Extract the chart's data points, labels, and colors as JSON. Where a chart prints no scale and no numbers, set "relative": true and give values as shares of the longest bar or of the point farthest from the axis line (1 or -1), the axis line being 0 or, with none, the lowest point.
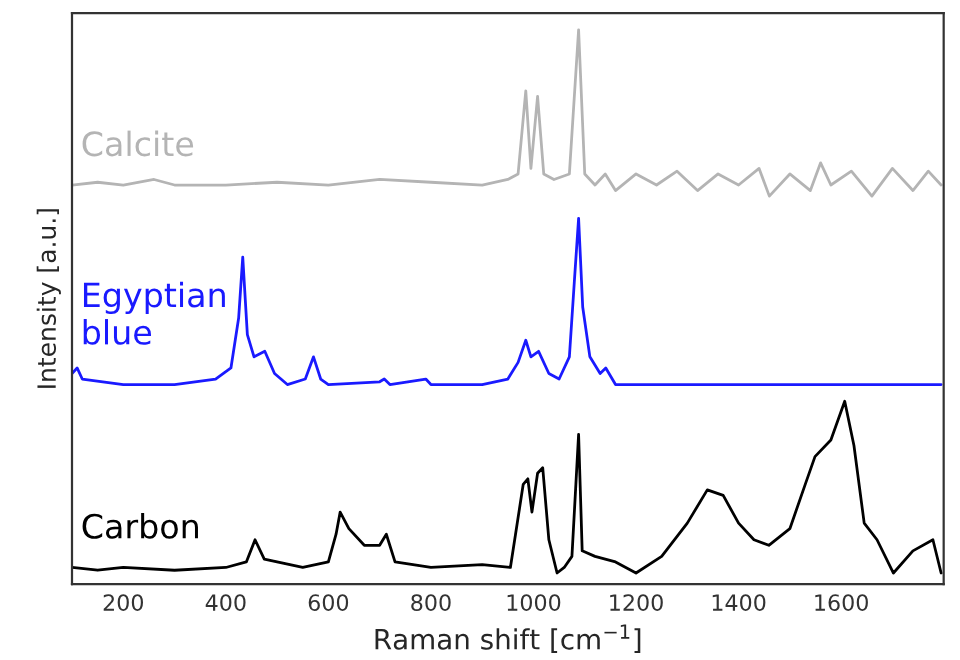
{
  "chart_data": {
    "type": "line",
    "xlabel": "Raman shift [cm$^{−1}$]",
    "ylabel": "Intensity [a.u.]",
    "relative": true,
    "xlim": [
      100,
      1800
    ],
    "xticks": [
      200,
      400,
      600,
      800,
      1000,
      1200,
      1400,
      1600
    ],
    "tick_labels": "x",
    "grid": false,
    "legend": false,
    "series": [
      {
        "name": "Calcite",
        "color": "#b4b4b4",
        "x": [
          100,
          150,
          200,
          260,
          300,
          400,
          500,
          600,
          700,
          800,
          900,
          950,
          970,
          985,
          995,
          1008,
          1020,
          1040,
          1070,
          1088,
          1100,
          1120,
          1140,
          1160,
          1200,
          1240,
          1280,
          1320,
          1360,
          1400,
          1440,
          1460,
          1500,
          1540,
          1560,
          1580,
          1620,
          1660,
          1700,
          1740,
          1770,
          1795
        ],
        "values": [
          0.72,
          0.725,
          0.72,
          0.73,
          0.72,
          0.72,
          0.725,
          0.72,
          0.73,
          0.725,
          0.72,
          0.73,
          0.74,
          0.89,
          0.75,
          0.88,
          0.74,
          0.73,
          0.74,
          1.0,
          0.74,
          0.72,
          0.74,
          0.71,
          0.74,
          0.72,
          0.745,
          0.71,
          0.74,
          0.72,
          0.75,
          0.7,
          0.74,
          0.71,
          0.76,
          0.72,
          0.745,
          0.7,
          0.75,
          0.71,
          0.745,
          0.72
        ]
      },
      {
        "name": "Egyptian\nblue",
        "color": "#1a1aff",
        "x": [
          100,
          110,
          120,
          200,
          300,
          380,
          410,
          425,
          433,
          442,
          455,
          476,
          495,
          520,
          555,
          571,
          585,
          600,
          700,
          709,
          720,
          790,
          800,
          900,
          950,
          970,
          985,
          995,
          1010,
          1030,
          1050,
          1070,
          1080,
          1088,
          1096,
          1110,
          1130,
          1141,
          1160,
          1300,
          1500,
          1700,
          1795
        ],
        "values": [
          0.38,
          0.39,
          0.37,
          0.36,
          0.36,
          0.37,
          0.39,
          0.48,
          0.59,
          0.45,
          0.41,
          0.42,
          0.38,
          0.36,
          0.37,
          0.41,
          0.37,
          0.36,
          0.365,
          0.37,
          0.36,
          0.37,
          0.36,
          0.36,
          0.37,
          0.4,
          0.44,
          0.41,
          0.42,
          0.38,
          0.37,
          0.41,
          0.55,
          0.66,
          0.5,
          0.41,
          0.38,
          0.39,
          0.36,
          0.36,
          0.36,
          0.36,
          0.36
        ]
      },
      {
        "name": "Carbon",
        "color": "#000000",
        "x": [
          100,
          150,
          200,
          300,
          400,
          440,
          457,
          475,
          550,
          600,
          615,
          623,
          640,
          670,
          700,
          713,
          730,
          800,
          900,
          955,
          965,
          980,
          989,
          997,
          1008,
          1018,
          1030,
          1046,
          1060,
          1075,
          1088,
          1095,
          1120,
          1160,
          1200,
          1250,
          1300,
          1339,
          1370,
          1400,
          1430,
          1459,
          1500,
          1530,
          1549,
          1580,
          1607,
          1625,
          1645,
          1670,
          1702,
          1740,
          1779,
          1795
        ],
        "values": [
          0.03,
          0.025,
          0.03,
          0.025,
          0.03,
          0.04,
          0.08,
          0.045,
          0.03,
          0.04,
          0.09,
          0.13,
          0.1,
          0.07,
          0.07,
          0.09,
          0.04,
          0.03,
          0.035,
          0.03,
          0.09,
          0.18,
          0.19,
          0.13,
          0.2,
          0.21,
          0.08,
          0.02,
          0.03,
          0.05,
          0.27,
          0.06,
          0.05,
          0.04,
          0.02,
          0.05,
          0.11,
          0.17,
          0.16,
          0.11,
          0.08,
          0.07,
          0.1,
          0.18,
          0.23,
          0.26,
          0.33,
          0.25,
          0.11,
          0.08,
          0.02,
          0.06,
          0.08,
          0.02
        ]
      }
    ]
  }
}
